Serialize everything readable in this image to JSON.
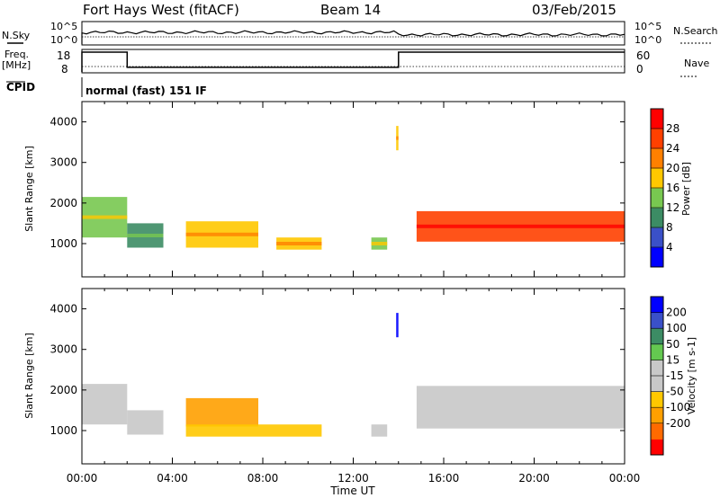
{
  "header": {
    "title": "Fort Hays West (fitACF)",
    "beam": "Beam 14",
    "date": "03/Feb/2015"
  },
  "labels": {
    "nsky": "N.Sky",
    "nsearch": "N.Search",
    "freq": "Freq.",
    "freq_unit": "[MHz]",
    "nave": "Nave",
    "cpid": "CPID",
    "cpid_value": "normal (fast) 151 IF",
    "noise_top": "10^5",
    "noise_bottom": "10^0",
    "freq_ticks": [
      "18",
      "8"
    ],
    "nave_ticks": [
      "60",
      "0"
    ]
  },
  "colors": {
    "power": [
      "#0000ff",
      "#3a50c8",
      "#3c8c64",
      "#78c850",
      "#ffc800",
      "#ff8000",
      "#ff4000",
      "#ff0000"
    ],
    "velocity": [
      "#ff0000",
      "#ff6a00",
      "#ffa000",
      "#ffc800",
      "#c8c8c8",
      "#c8c8c8",
      "#64c850",
      "#3c8c64",
      "#3a50c8",
      "#0000ff"
    ]
  },
  "chart_data": [
    {
      "type": "line",
      "name": "noise-panel",
      "series": [
        {
          "name": "N.Sky",
          "x": [
            "00:00",
            "06:00",
            "12:00",
            "14:00",
            "18:00",
            "00:00"
          ],
          "values": [
            7,
            9,
            8,
            6,
            6,
            7
          ]
        },
        {
          "name": "N.Search",
          "x": [
            "00:00",
            "24:00"
          ],
          "values": [
            5,
            5
          ]
        }
      ],
      "ylabels": [
        "10^5",
        "10^0"
      ]
    },
    {
      "type": "line",
      "name": "freq-nave-panel",
      "series": [
        {
          "name": "Freq.",
          "x": [
            0,
            2.0,
            2.0,
            14.0,
            14.0,
            24
          ],
          "values": [
            18,
            18,
            10.3,
            10.3,
            18,
            18
          ]
        },
        {
          "name": "Nave",
          "x": [
            0,
            24
          ],
          "values": [
            12,
            12
          ]
        }
      ],
      "ylim_freq": [
        8,
        18
      ],
      "ylim_nave": [
        0,
        60
      ]
    },
    {
      "type": "heatmap",
      "name": "power",
      "ylabel": "Slant Range [km]",
      "colorbar_label": "Power [dB]",
      "colorbar_ticks": [
        "28",
        "24",
        "20",
        "16",
        "12",
        "8",
        "4"
      ],
      "xlim": [
        0,
        24
      ],
      "ylim": [
        180,
        4500
      ],
      "yticks": [
        1000,
        2000,
        3000,
        4000
      ],
      "regions": [
        {
          "x0": 0.0,
          "x1": 2.0,
          "y0": 1150,
          "y1": 2150,
          "value": 12
        },
        {
          "x0": 2.0,
          "x1": 3.6,
          "y0": 900,
          "y1": 1500,
          "value": 8
        },
        {
          "x0": 4.6,
          "x1": 7.8,
          "y0": 900,
          "y1": 1550,
          "value": 16
        },
        {
          "x0": 8.6,
          "x1": 10.6,
          "y0": 850,
          "y1": 1150,
          "value": 16
        },
        {
          "x0": 12.8,
          "x1": 13.5,
          "y0": 850,
          "y1": 1150,
          "value": 12
        },
        {
          "x0": 13.9,
          "x1": 14.0,
          "y0": 3300,
          "y1": 3900,
          "value": 16
        },
        {
          "x0": 14.8,
          "x1": 24.0,
          "y0": 1050,
          "y1": 1800,
          "value": 24
        }
      ]
    },
    {
      "type": "heatmap",
      "name": "velocity",
      "xlabel": "Time UT",
      "ylabel": "Slant Range [km]",
      "colorbar_label": "Velocity [m s-1]",
      "colorbar_ticks": [
        "200",
        "100",
        "50",
        "15",
        "-15",
        "-50",
        "-100",
        "-200"
      ],
      "xlim": [
        0,
        24
      ],
      "ylim": [
        180,
        4500
      ],
      "xticks": [
        "00:00",
        "04:00",
        "08:00",
        "12:00",
        "16:00",
        "20:00",
        "00:00"
      ],
      "yticks": [
        1000,
        2000,
        3000,
        4000
      ],
      "regions": [
        {
          "x0": 0.0,
          "x1": 2.0,
          "y0": 1150,
          "y1": 2150,
          "value": 0
        },
        {
          "x0": 2.0,
          "x1": 3.6,
          "y0": 900,
          "y1": 1500,
          "value": 0
        },
        {
          "x0": 4.6,
          "x1": 7.8,
          "y0": 1100,
          "y1": 1800,
          "value": -110
        },
        {
          "x0": 4.6,
          "x1": 10.6,
          "y0": 850,
          "y1": 1150,
          "value": -60
        },
        {
          "x0": 12.8,
          "x1": 13.5,
          "y0": 850,
          "y1": 1150,
          "value": 0
        },
        {
          "x0": 13.9,
          "x1": 14.0,
          "y0": 3300,
          "y1": 3900,
          "value": 250
        },
        {
          "x0": 14.8,
          "x1": 24.0,
          "y0": 1050,
          "y1": 2100,
          "value": 0
        }
      ]
    }
  ]
}
